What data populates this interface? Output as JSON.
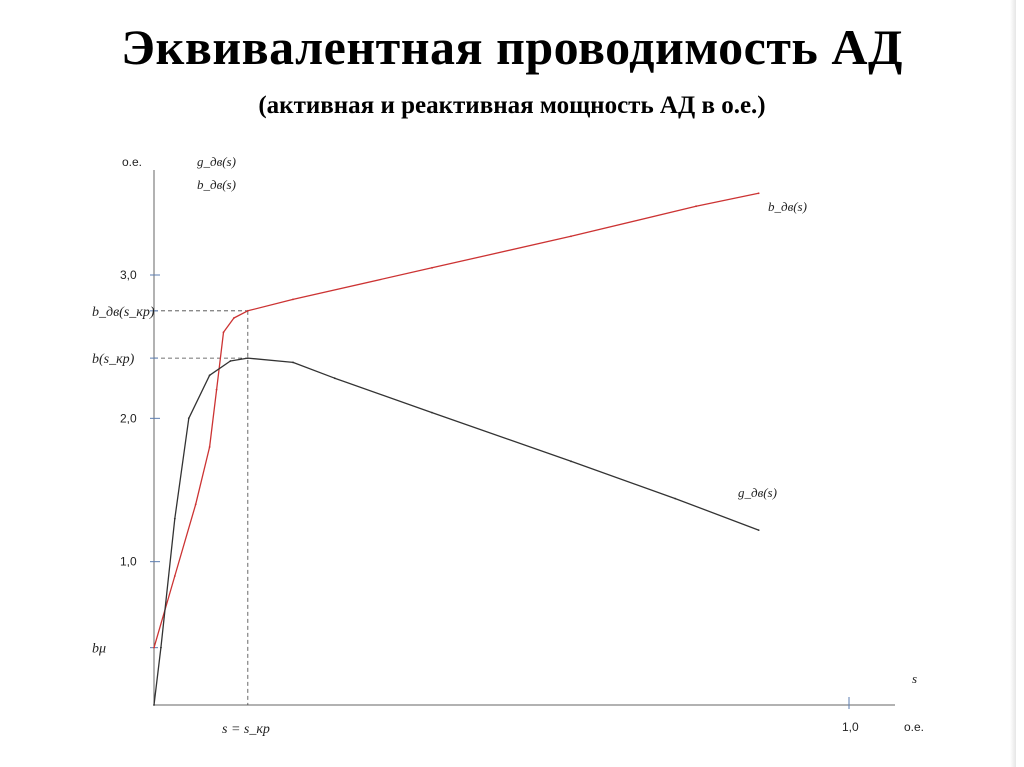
{
  "header": {
    "title": "Эквивалентная проводимость АД",
    "subtitle": "(активная и реактивная мощность АД в о.е.)"
  },
  "chart_data": {
    "type": "line",
    "y_unit_label": "о.е.",
    "x_unit_label": "о.е.",
    "x_axis_label": "s",
    "ylim": [
      0,
      3.8
    ],
    "xlim": [
      0,
      1.05
    ],
    "y_ticks": [
      {
        "value": 1.0,
        "label": "1,0"
      },
      {
        "value": 2.0,
        "label": "2,0"
      },
      {
        "value": 3.0,
        "label": "3,0"
      }
    ],
    "x_ticks": [
      {
        "value": 1.0,
        "label": "1,0"
      }
    ],
    "legend_lines": [
      "g_дв(s)",
      "b_дв(s)"
    ],
    "series": [
      {
        "name": "b_дв(s)",
        "color": "#cc3333",
        "points": [
          [
            0.0,
            0.4
          ],
          [
            0.03,
            0.9
          ],
          [
            0.06,
            1.4
          ],
          [
            0.08,
            1.8
          ],
          [
            0.09,
            2.2
          ],
          [
            0.1,
            2.6
          ],
          [
            0.115,
            2.7
          ],
          [
            0.135,
            2.75
          ],
          [
            0.2,
            2.83
          ],
          [
            0.4,
            3.05
          ],
          [
            0.6,
            3.27
          ],
          [
            0.78,
            3.48
          ],
          [
            0.87,
            3.57
          ]
        ]
      },
      {
        "name": "g_дв(s)",
        "color": "#333333",
        "points": [
          [
            0.0,
            0.0
          ],
          [
            0.01,
            0.4
          ],
          [
            0.03,
            1.3
          ],
          [
            0.05,
            2.0
          ],
          [
            0.08,
            2.3
          ],
          [
            0.11,
            2.4
          ],
          [
            0.135,
            2.42
          ],
          [
            0.2,
            2.39
          ],
          [
            0.26,
            2.28
          ],
          [
            0.4,
            2.04
          ],
          [
            0.6,
            1.7
          ],
          [
            0.75,
            1.44
          ],
          [
            0.87,
            1.22
          ]
        ]
      }
    ],
    "guides": [
      {
        "label": "b_дв(s_кр)",
        "value": 2.75,
        "series": "b_дв(s)"
      },
      {
        "label": "b(s_кр)",
        "value": 2.42,
        "series": "g_дв(s)"
      },
      {
        "label": "bμ",
        "value": 0.4
      }
    ],
    "critical_slip": {
      "label": "s = s_кр",
      "value": 0.135
    },
    "curve_labels": [
      {
        "text": "b_дв(s)",
        "near": "right end of red curve"
      },
      {
        "text": "g_дв(s)",
        "near": "right end of black curve"
      }
    ]
  }
}
